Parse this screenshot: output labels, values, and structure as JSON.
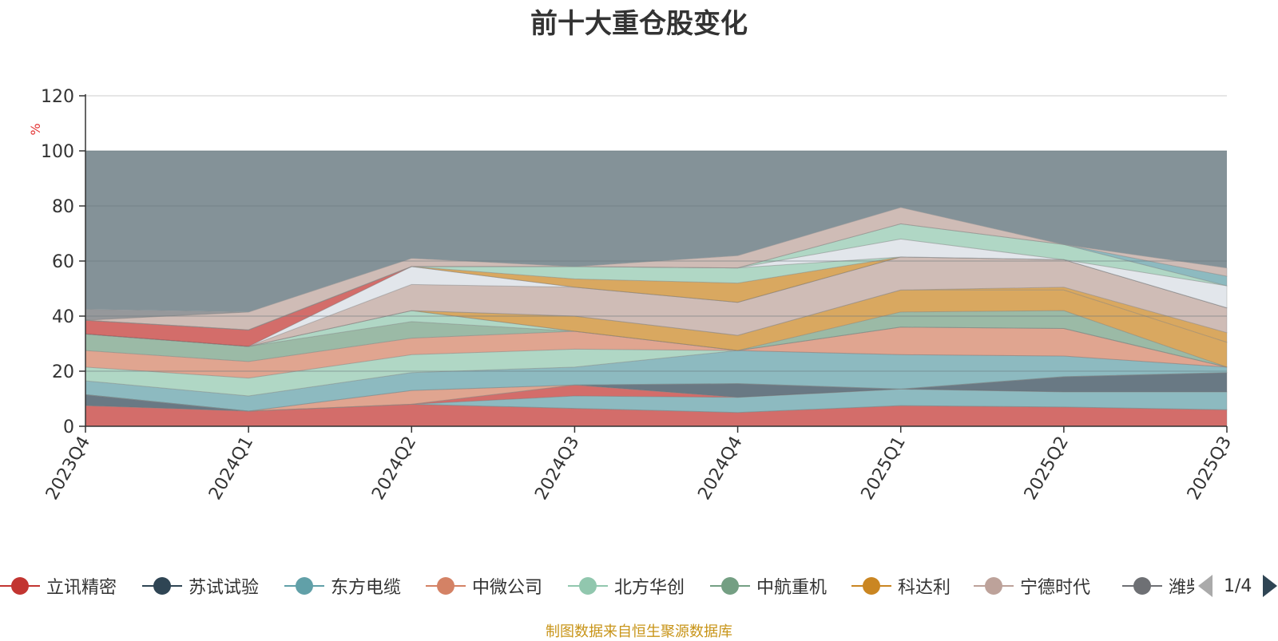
{
  "chart_data": {
    "type": "area",
    "stacked": true,
    "title": "前十大重仓股变化",
    "ylabel": "%",
    "ylim": [
      0,
      120
    ],
    "yticks": [
      0,
      20,
      40,
      60,
      80,
      100,
      120
    ],
    "grid": true,
    "legend_position": "bottom",
    "categories": [
      "2023Q4",
      "2024Q1",
      "2024Q2",
      "2024Q3",
      "2024Q4",
      "2025Q1",
      "2025Q2",
      "2025Q3"
    ],
    "series": [
      {
        "name": "立讯精密",
        "color": "#c23531",
        "values": [
          7.5,
          5.5,
          8.0,
          6.5,
          5.0,
          7.5,
          7.0,
          6.0
        ]
      },
      {
        "name": "苏试试验",
        "color": "#2f4554",
        "values": [
          4.0,
          0,
          0,
          0,
          0,
          0,
          0,
          0
        ]
      },
      {
        "name": "东方电缆",
        "color": "#61a0a8",
        "values": [
          0,
          0,
          0,
          4.5,
          5.5,
          6.0,
          5.5,
          6.5
        ]
      },
      {
        "name": "中微公司",
        "color": "#d48265",
        "values": [
          0,
          0,
          5.0,
          0,
          0,
          0,
          0,
          0
        ]
      },
      {
        "name": "北方华创",
        "color": "#91c7ae",
        "values": [
          5.0,
          6.5,
          6.5,
          6.5,
          0,
          0,
          0,
          0
        ]
      },
      {
        "name": "中航重机",
        "color": "#749f83",
        "values": [
          6.0,
          5.5,
          6.0,
          0,
          0,
          0,
          0,
          0
        ]
      },
      {
        "name": "科达利",
        "color": "#ca8622",
        "values": [
          0,
          0,
          0,
          5.5,
          5.5,
          8.0,
          7.5,
          9.0
        ]
      },
      {
        "name": "宁德时代",
        "color": "#bda29a",
        "values": [
          0,
          0,
          9.5,
          10.5,
          12.0,
          12.0,
          10.0,
          9.0
        ]
      },
      {
        "name": "潍柴动力",
        "color": "#6e7074",
        "values": [
          4.0,
          0,
          0,
          0,
          0,
          0,
          0,
          0
        ]
      }
    ],
    "other_bands": [
      {
        "color": "#c23531",
        "values": [
          0,
          0,
          0,
          4.0,
          0,
          0,
          0,
          0
        ]
      },
      {
        "color": "#2f4554",
        "values": [
          0,
          0,
          0,
          0,
          5.0,
          0,
          5.5,
          7.0
        ]
      },
      {
        "color": "#61a0a8",
        "values": [
          0,
          0,
          0,
          0,
          0,
          0,
          0,
          0
        ]
      },
      {
        "color": "#61a0a8",
        "values": [
          5.0,
          5.5,
          6.5,
          6.5,
          12.0,
          12.5,
          7.5,
          2.0
        ]
      },
      {
        "color": "#d48265",
        "values": [
          6.0,
          6.0,
          6.0,
          6.5,
          0,
          10.0,
          10.0,
          0
        ]
      },
      {
        "color": "#91c7ae",
        "values": [
          0,
          0,
          4.0,
          0,
          0,
          0,
          0,
          0
        ]
      },
      {
        "color": "#749f83",
        "values": [
          0,
          0,
          0,
          0,
          0,
          5.5,
          6.5,
          0
        ]
      },
      {
        "color": "#ca8622",
        "values": [
          0,
          0,
          0,
          0,
          0,
          0,
          1.0,
          3.5
        ]
      },
      {
        "color": "#d7dce3",
        "values": [
          0,
          0,
          6.5,
          0,
          0,
          0,
          0,
          0
        ]
      },
      {
        "color": "#c23531",
        "values": [
          5.0,
          6.0,
          0,
          0,
          0,
          0,
          0,
          0
        ]
      },
      {
        "color": "#ca8622",
        "values": [
          0,
          0,
          0,
          3.0,
          7.0,
          0,
          0,
          0
        ]
      },
      {
        "color": "#91c7ae",
        "values": [
          0,
          0,
          0,
          4.5,
          5.5,
          0,
          0,
          0
        ]
      },
      {
        "color": "#d7dce3",
        "values": [
          0,
          0,
          0,
          0,
          0,
          6.5,
          0,
          8.0
        ]
      },
      {
        "color": "#91c7ae",
        "values": [
          0,
          0,
          0,
          0,
          0,
          5.5,
          5.5,
          0
        ]
      },
      {
        "color": "#61a0a8",
        "values": [
          0,
          0,
          0,
          0,
          0,
          0,
          0,
          3.5
        ]
      },
      {
        "color": "#bda29a",
        "values": [
          0,
          6.5,
          3.0,
          0,
          4.5,
          6.0,
          0,
          3.0
        ]
      }
    ],
    "remainder_color": "#849298"
  },
  "legend": {
    "items": [
      {
        "label": "立讯精密",
        "color": "#c23531"
      },
      {
        "label": "苏试试验",
        "color": "#2f4554"
      },
      {
        "label": "东方电缆",
        "color": "#61a0a8"
      },
      {
        "label": "中微公司",
        "color": "#d48265"
      },
      {
        "label": "北方华创",
        "color": "#91c7ae"
      },
      {
        "label": "中航重机",
        "color": "#749f83"
      },
      {
        "label": "科达利",
        "color": "#ca8622"
      },
      {
        "label": "宁德时代",
        "color": "#bda29a"
      },
      {
        "label": "潍柴动力",
        "color": "#6e7074"
      }
    ],
    "page_indicator": "1/4"
  },
  "source_note": "制图数据来自恒生聚源数据库"
}
